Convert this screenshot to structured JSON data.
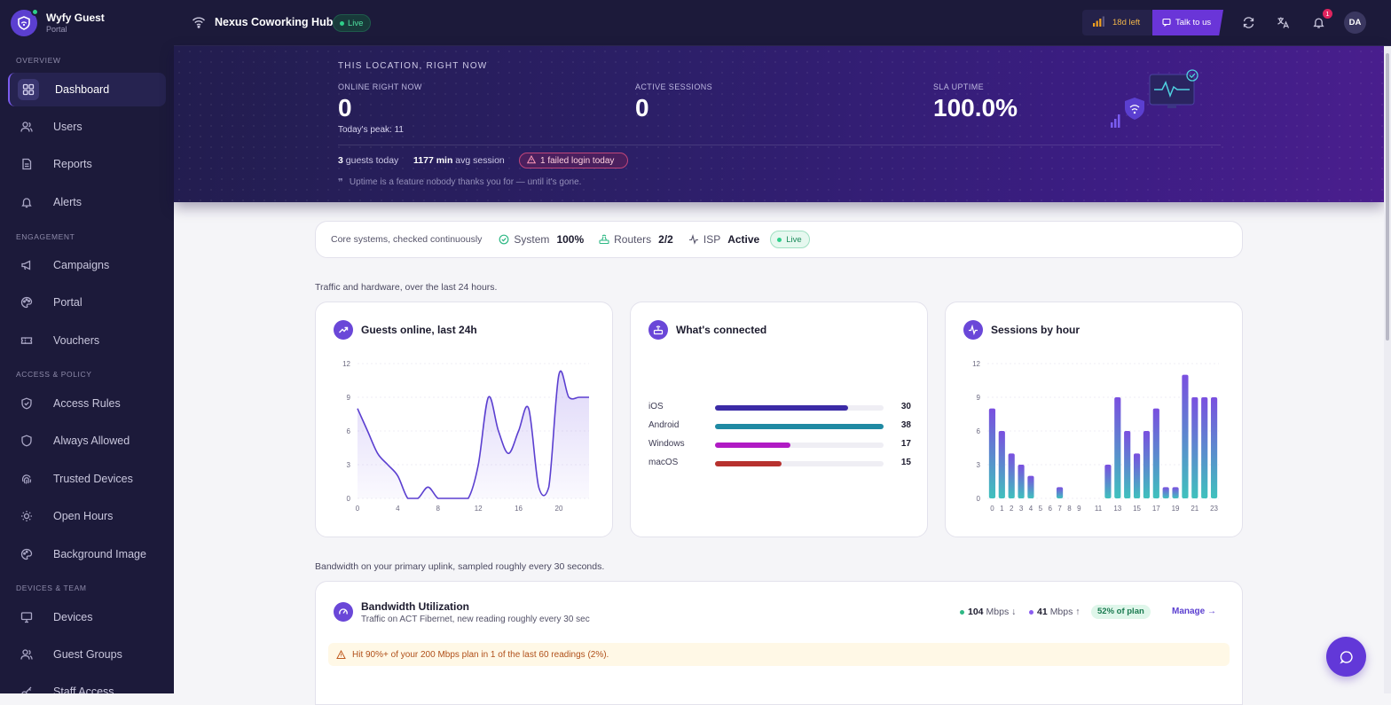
{
  "brand": {
    "name": "Wyfy Guest",
    "sub": "Portal"
  },
  "sidebar": {
    "sections": [
      {
        "label": "OVERVIEW",
        "items": [
          {
            "label": "Dashboard",
            "icon": "grid-icon",
            "active": true
          },
          {
            "label": "Users",
            "icon": "users-icon"
          },
          {
            "label": "Reports",
            "icon": "file-icon"
          },
          {
            "label": "Alerts",
            "icon": "bell-icon"
          }
        ]
      },
      {
        "label": "ENGAGEMENT",
        "items": [
          {
            "label": "Campaigns",
            "icon": "megaphone-icon"
          },
          {
            "label": "Portal",
            "icon": "palette-icon"
          },
          {
            "label": "Vouchers",
            "icon": "ticket-icon"
          }
        ]
      },
      {
        "label": "ACCESS & POLICY",
        "items": [
          {
            "label": "Access Rules",
            "icon": "shield-icon"
          },
          {
            "label": "Always Allowed",
            "icon": "shield-outline-icon"
          },
          {
            "label": "Trusted Devices",
            "icon": "fingerprint-icon"
          },
          {
            "label": "Open Hours",
            "icon": "sun-icon"
          },
          {
            "label": "Background Image",
            "icon": "image-icon"
          }
        ]
      },
      {
        "label": "DEVICES & TEAM",
        "items": [
          {
            "label": "Devices",
            "icon": "monitor-icon"
          },
          {
            "label": "Guest Groups",
            "icon": "users-icon"
          },
          {
            "label": "Staff Access",
            "icon": "key-icon"
          }
        ]
      }
    ]
  },
  "topbar": {
    "location": "Nexus Coworking Hub",
    "live": "Live",
    "trial": "18d left",
    "talk": "Talk to us",
    "notif_count": "1",
    "avatar": "DA"
  },
  "hero": {
    "heading": "THIS LOCATION, RIGHT NOW",
    "stats": [
      {
        "label": "ONLINE RIGHT NOW",
        "value": "0",
        "sub": "Today's peak: 11"
      },
      {
        "label": "ACTIVE SESSIONS",
        "value": "0"
      },
      {
        "label": "SLA UPTIME",
        "value": "100.0%"
      }
    ],
    "guests_value": "3",
    "guests_label": "guests today",
    "avg_value": "1177 min",
    "avg_label": "avg session",
    "failed": "1 failed login today",
    "quote": "Uptime is a feature nobody thanks you for — until it's gone."
  },
  "status": {
    "intro": "Core systems, checked continuously",
    "system_label": "System",
    "system_value": "100%",
    "routers_label": "Routers",
    "routers_value": "2/2",
    "isp_label": "ISP",
    "isp_value": "Active",
    "live": "Live"
  },
  "traffic_caption": "Traffic and hardware, over the last 24 hours.",
  "bandwidth_caption": "Bandwidth on your primary uplink, sampled roughly every 30 seconds.",
  "cards": {
    "guests_title": "Guests online, last 24h",
    "connected_title": "What's connected",
    "sessions_title": "Sessions by hour"
  },
  "chart_data": [
    {
      "type": "area",
      "title": "Guests online, last 24h",
      "x": [
        0,
        1,
        2,
        3,
        4,
        5,
        6,
        7,
        8,
        9,
        10,
        11,
        12,
        13,
        14,
        15,
        16,
        17,
        18,
        19,
        20,
        21,
        22,
        23
      ],
      "values": [
        8,
        6,
        4,
        3,
        2,
        0,
        0,
        1,
        0,
        0,
        0,
        0,
        3,
        9,
        6,
        4,
        6,
        8,
        1,
        1,
        11,
        9,
        9,
        9
      ],
      "x_ticks": [
        0,
        4,
        8,
        12,
        16,
        20
      ],
      "y_ticks": [
        0,
        3,
        6,
        9,
        12
      ],
      "ylim": [
        0,
        12
      ],
      "color": "#5b3fd0"
    },
    {
      "type": "bar",
      "title": "What's connected",
      "categories": [
        "iOS",
        "Android",
        "Windows",
        "macOS"
      ],
      "values": [
        30,
        38,
        17,
        15
      ],
      "colors": [
        "#3b2ba6",
        "#1f8aa3",
        "#b01ac4",
        "#b7312e"
      ],
      "max": 38
    },
    {
      "type": "bar",
      "title": "Sessions by hour",
      "categories": [
        "0",
        "1",
        "2",
        "3",
        "4",
        "5",
        "6",
        "7",
        "8",
        "9",
        "10",
        "11",
        "12",
        "13",
        "14",
        "15",
        "16",
        "17",
        "18",
        "19",
        "20",
        "21",
        "22",
        "23"
      ],
      "values": [
        8,
        6,
        4,
        3,
        2,
        0,
        0,
        1,
        0,
        0,
        0,
        0,
        3,
        9,
        6,
        4,
        6,
        8,
        1,
        1,
        11,
        9,
        9,
        9
      ],
      "x_labels": [
        "0",
        "1",
        "2",
        "3",
        "4",
        "5",
        "6",
        "7",
        "8",
        "9",
        "",
        "11",
        "",
        "13",
        "",
        "15",
        "",
        "17",
        "",
        "19",
        "",
        "21",
        "",
        "23"
      ],
      "y_ticks": [
        0,
        3,
        6,
        9,
        12
      ],
      "ylim": [
        0,
        12
      ]
    }
  ],
  "bandwidth": {
    "title": "Bandwidth Utilization",
    "subtitle": "Traffic on ACT Fibernet, new reading roughly every 30 sec",
    "down_value": "104",
    "down_unit": "Mbps ↓",
    "up_value": "41",
    "up_unit": "Mbps ↑",
    "plan": "52% of plan",
    "manage": "Manage →",
    "warning": "Hit 90%+ of your 200 Mbps plan in 1 of the last 60 readings (2%)."
  },
  "colors": {
    "accent": "#6a47d8",
    "sidebar": "#1c1a3a",
    "live": "#2ecf8a",
    "warning_bg": "#fff8e6"
  }
}
